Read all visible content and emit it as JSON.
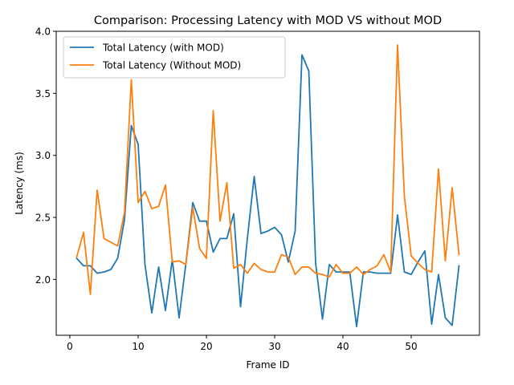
{
  "chart_data": {
    "type": "line",
    "title": "Comparison: Processing Latency with MOD VS without MOD",
    "xlabel": "Frame ID",
    "ylabel": "Latency (ms)",
    "xlim": [
      -2.0,
      60.0
    ],
    "ylim": [
      1.55,
      4.0
    ],
    "xticks": [
      0,
      10,
      20,
      30,
      40,
      50
    ],
    "yticks": [
      2.0,
      2.5,
      3.0,
      3.5,
      4.0
    ],
    "ytick_labels": [
      "2.0",
      "2.5",
      "3.0",
      "3.5",
      "4.0"
    ],
    "grid": false,
    "legend_position": "upper-left",
    "x": [
      1,
      2,
      3,
      4,
      5,
      6,
      7,
      8,
      9,
      10,
      11,
      12,
      13,
      14,
      15,
      16,
      17,
      18,
      19,
      20,
      21,
      22,
      23,
      24,
      25,
      26,
      27,
      28,
      29,
      30,
      31,
      32,
      33,
      34,
      35,
      36,
      37,
      38,
      39,
      40,
      41,
      42,
      43,
      44,
      45,
      46,
      47,
      48,
      49,
      50,
      51,
      52,
      53,
      54,
      55,
      56,
      57
    ],
    "series": [
      {
        "name": "Total Latency (with MOD)",
        "color": "#1f77b4",
        "values": [
          2.17,
          2.11,
          2.11,
          2.05,
          2.06,
          2.08,
          2.17,
          2.48,
          3.24,
          3.09,
          2.12,
          1.73,
          2.1,
          1.75,
          2.16,
          1.69,
          2.13,
          2.62,
          2.47,
          2.47,
          2.22,
          2.33,
          2.33,
          2.53,
          1.78,
          2.33,
          2.83,
          2.37,
          2.39,
          2.42,
          2.36,
          2.14,
          2.39,
          3.81,
          3.68,
          2.13,
          1.68,
          2.12,
          2.06,
          2.06,
          2.06,
          1.62,
          2.06,
          2.06,
          2.05,
          2.05,
          2.05,
          2.52,
          2.06,
          2.04,
          2.14,
          2.23,
          1.64,
          2.04,
          1.69,
          1.63,
          2.11
        ]
      },
      {
        "name": "Total Latency (Without MOD)",
        "color": "#ff7f0e",
        "values": [
          2.18,
          2.38,
          1.88,
          2.72,
          2.33,
          2.3,
          2.27,
          2.54,
          3.61,
          2.62,
          2.71,
          2.57,
          2.59,
          2.76,
          2.14,
          2.15,
          2.12,
          2.58,
          2.25,
          2.17,
          3.36,
          2.47,
          2.78,
          2.09,
          2.12,
          2.05,
          2.13,
          2.08,
          2.06,
          2.06,
          2.2,
          2.18,
          2.04,
          2.1,
          2.1,
          2.05,
          2.04,
          2.02,
          2.12,
          2.05,
          2.05,
          2.1,
          2.04,
          2.08,
          2.11,
          2.2,
          2.06,
          3.89,
          2.67,
          2.19,
          2.13,
          2.08,
          2.06,
          2.89,
          2.15,
          2.74,
          2.2
        ]
      }
    ]
  }
}
